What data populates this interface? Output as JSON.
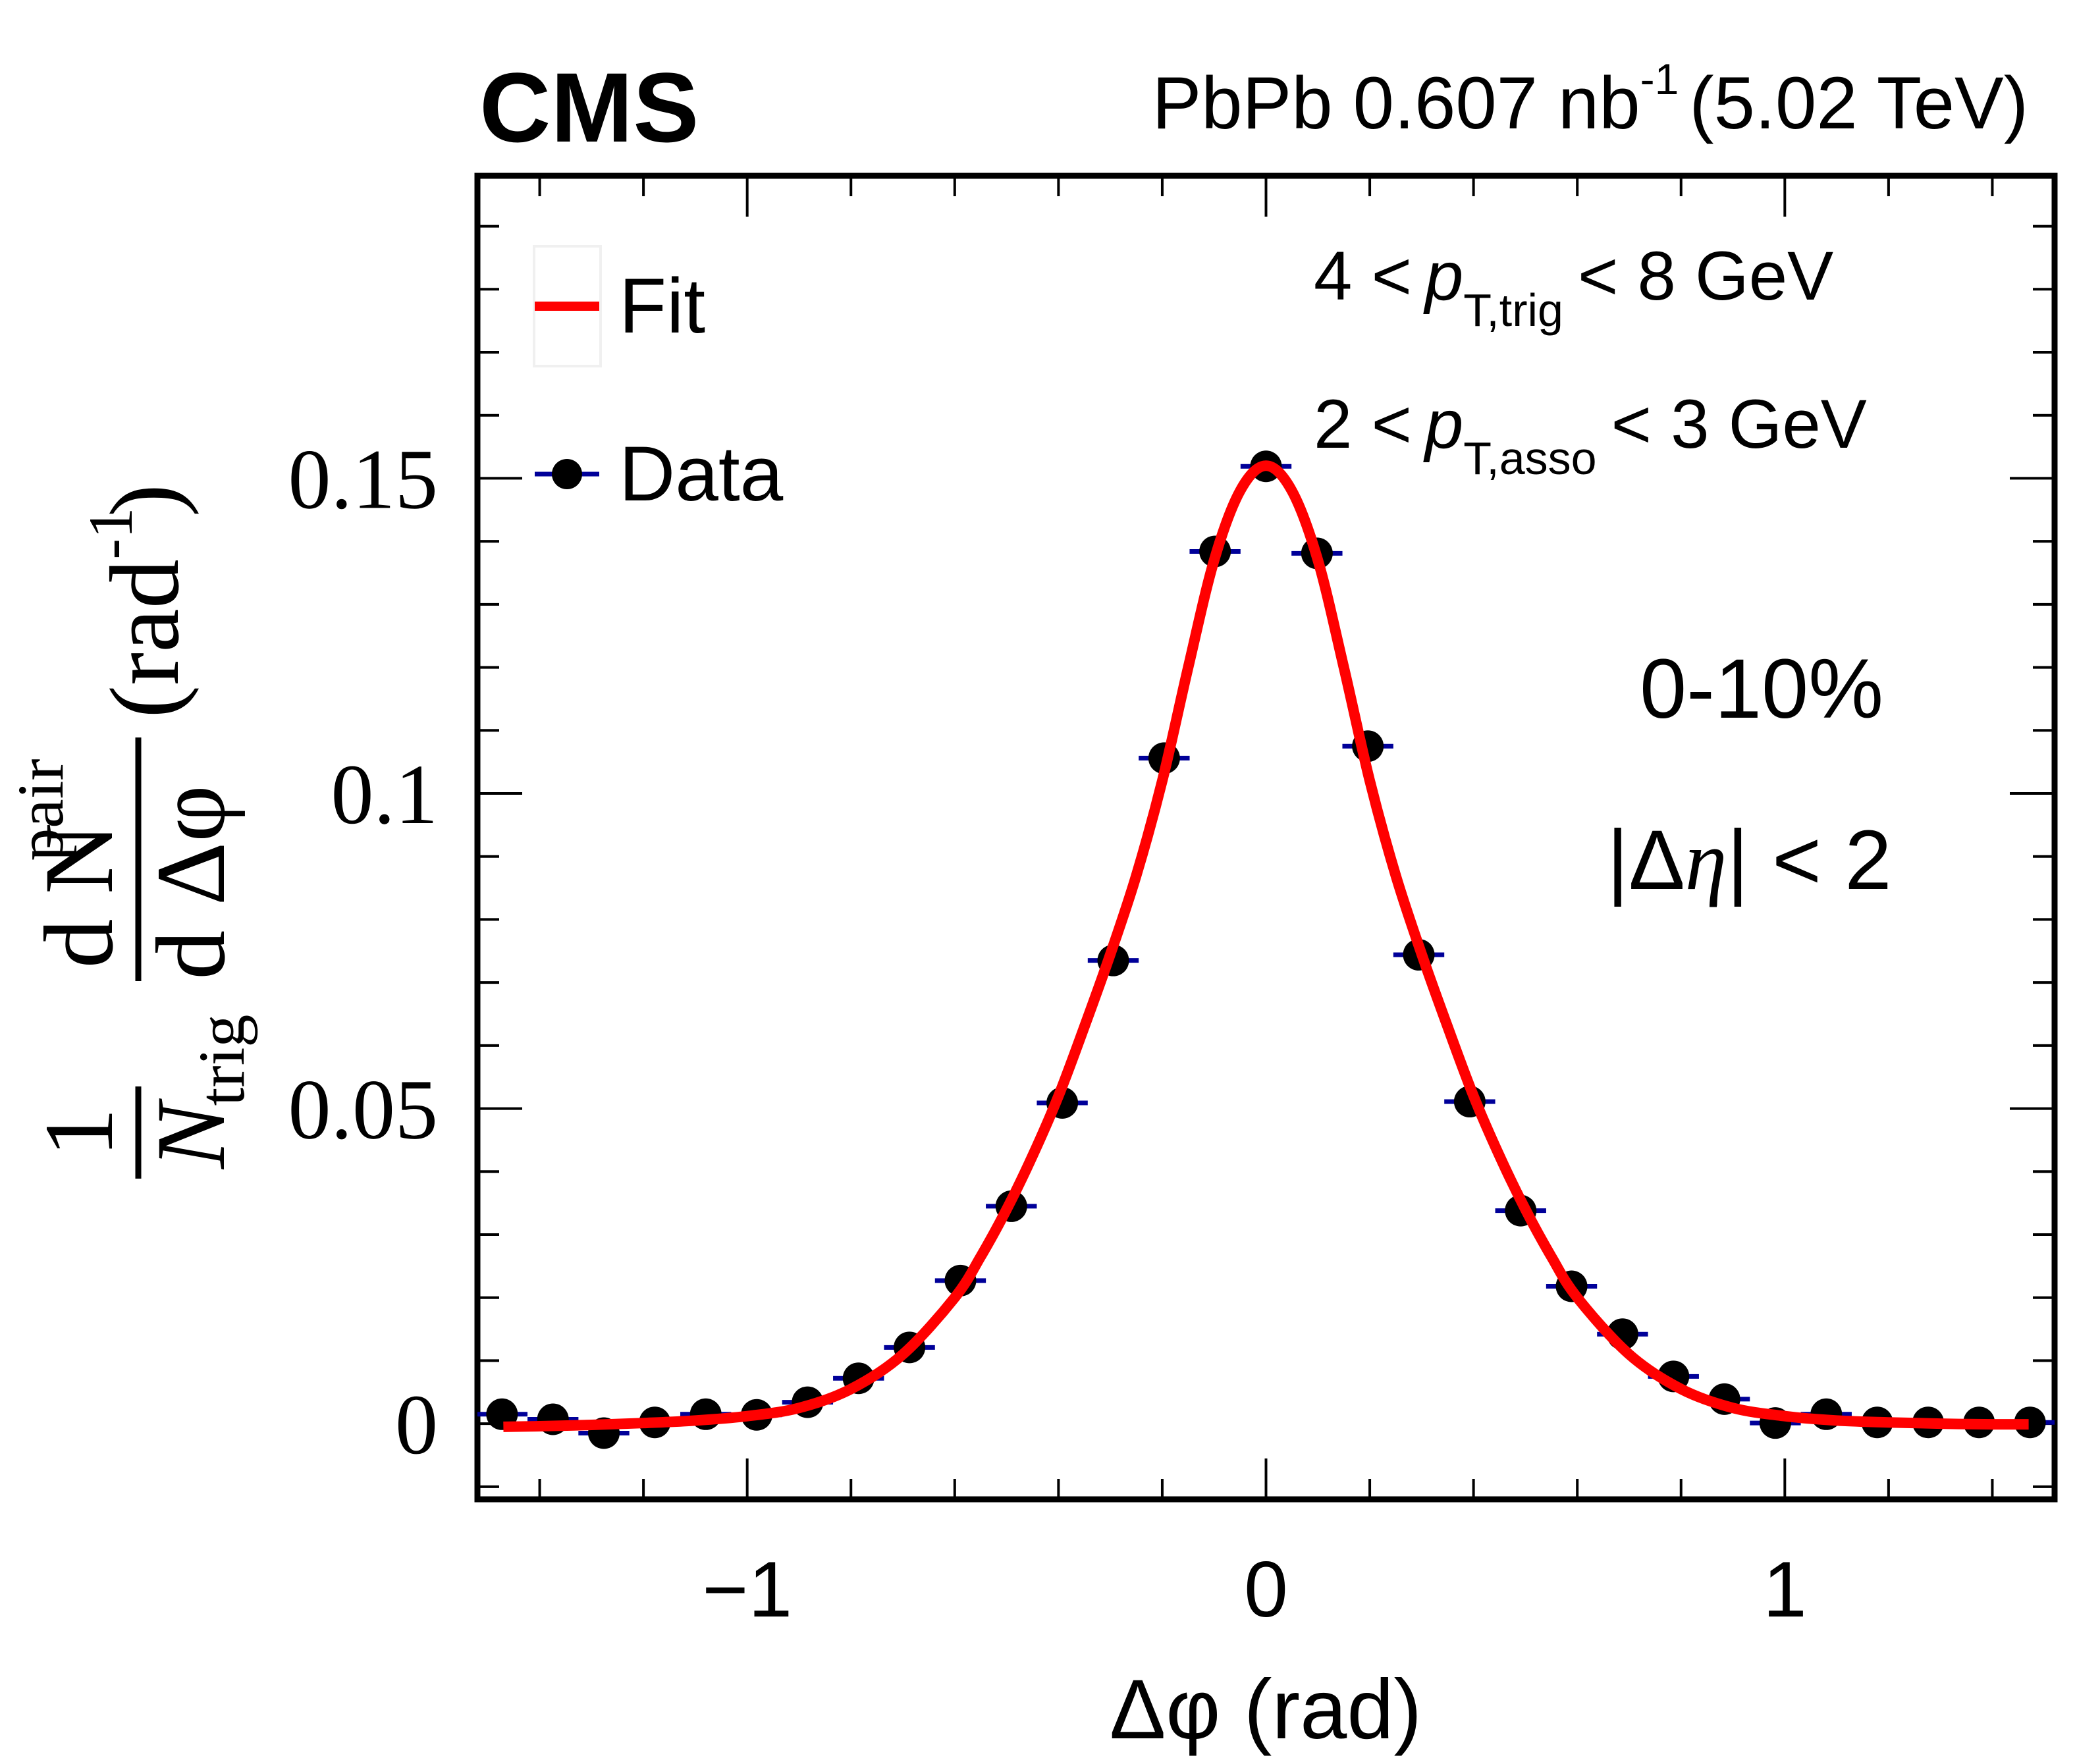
{
  "header": {
    "experiment": "CMS",
    "lumi_prefix": "PbPb 0.607 nb",
    "lumi_exp": "-1",
    "energy": "(5.02 TeV)"
  },
  "annotations": {
    "trig_low": "4 <",
    "trig_p": "p",
    "trig_sub": "T,trig",
    "trig_high": "< 8 GeV",
    "asso_low": "2 <",
    "asso_p": "p",
    "asso_sub": "T,asso",
    "asso_high": "< 3 GeV",
    "centrality": "0-10%",
    "eta_cut_open": "|Δ",
    "eta_cut_eta": "η",
    "eta_cut_close": "| < 2"
  },
  "legend": {
    "fit_label": "Fit",
    "data_label": "Data"
  },
  "colors": {
    "fit": "#ff0000",
    "data_marker": "#000000",
    "error_bar": "#000099",
    "frame": "#000000",
    "legend_border": "#f0f0f0"
  },
  "chart_data": {
    "type": "scatter",
    "title": "",
    "xlabel": "Δφ (rad)",
    "ylabel": "1/N_trig dN^pair/dΔφ (rad^-1)",
    "ylabel_parts": {
      "one": "1",
      "N": "N",
      "trig": "trig",
      "d": "d",
      "pair": "pair",
      "dphi": "d Δφ",
      "unit": "(rad",
      "unit_exp": "-1",
      "unit_close": ")"
    },
    "xlim": [
      -1.52,
      1.52
    ],
    "ylim": [
      -0.012,
      0.198
    ],
    "x_major_ticks": [
      -1,
      0,
      1
    ],
    "x_tick_labels": [
      "−1",
      "0",
      "1"
    ],
    "x_minor_step": 0.2,
    "y_major_ticks": [
      0,
      0.05,
      0.1,
      0.15
    ],
    "y_tick_labels": [
      "0",
      "0.05",
      "0.1",
      "0.15"
    ],
    "y_minor_step": 0.01,
    "grid": false,
    "legend_position": "top-left",
    "series": [
      {
        "name": "Data",
        "kind": "points",
        "x_bin_half_width": 0.0491,
        "x": [
          -1.4726,
          -1.3744,
          -1.2763,
          -1.1781,
          -1.0799,
          -0.9817,
          -0.8836,
          -0.7854,
          -0.6872,
          -0.589,
          -0.4909,
          -0.3927,
          -0.2945,
          -0.1963,
          -0.0982,
          0.0,
          0.0982,
          0.1963,
          0.2945,
          0.3927,
          0.4909,
          0.589,
          0.6872,
          0.7854,
          0.8836,
          0.9817,
          1.0799,
          1.1781,
          1.2763,
          1.3744,
          1.4726
        ],
        "y": [
          0.0015,
          0.0007,
          -0.0015,
          0.0002,
          0.0015,
          0.0014,
          0.0034,
          0.0072,
          0.0121,
          0.0227,
          0.0345,
          0.0509,
          0.0735,
          0.1056,
          0.1384,
          0.1519,
          0.1381,
          0.1075,
          0.0744,
          0.0511,
          0.0338,
          0.0218,
          0.0142,
          0.0075,
          0.0039,
          0.0001,
          0.0015,
          0.0002,
          0.0002,
          0.0002,
          0.0002
        ]
      },
      {
        "name": "Fit",
        "kind": "line",
        "x": [
          -1.47,
          -1.4,
          -1.3,
          -1.2,
          -1.1,
          -1.0,
          -0.9,
          -0.8,
          -0.7,
          -0.6,
          -0.55,
          -0.5,
          -0.45,
          -0.4,
          -0.35,
          -0.3,
          -0.25,
          -0.2,
          -0.15,
          -0.1,
          -0.05,
          0.0,
          0.05,
          0.1,
          0.15,
          0.2,
          0.25,
          0.3,
          0.35,
          0.4,
          0.45,
          0.5,
          0.55,
          0.6,
          0.7,
          0.8,
          0.9,
          1.0,
          1.1,
          1.2,
          1.3,
          1.4,
          1.47
        ],
        "y": [
          -0.0005,
          -0.0004,
          -0.0002,
          0.0001,
          0.0005,
          0.0012,
          0.0025,
          0.0055,
          0.011,
          0.02,
          0.0265,
          0.034,
          0.0425,
          0.052,
          0.063,
          0.0745,
          0.087,
          0.102,
          0.12,
          0.137,
          0.148,
          0.152,
          0.148,
          0.137,
          0.12,
          0.102,
          0.087,
          0.0745,
          0.063,
          0.052,
          0.0425,
          0.034,
          0.0265,
          0.02,
          0.011,
          0.0055,
          0.0025,
          0.0012,
          0.0005,
          0.0002,
          0.0,
          -0.0001,
          -0.0001
        ]
      }
    ]
  }
}
